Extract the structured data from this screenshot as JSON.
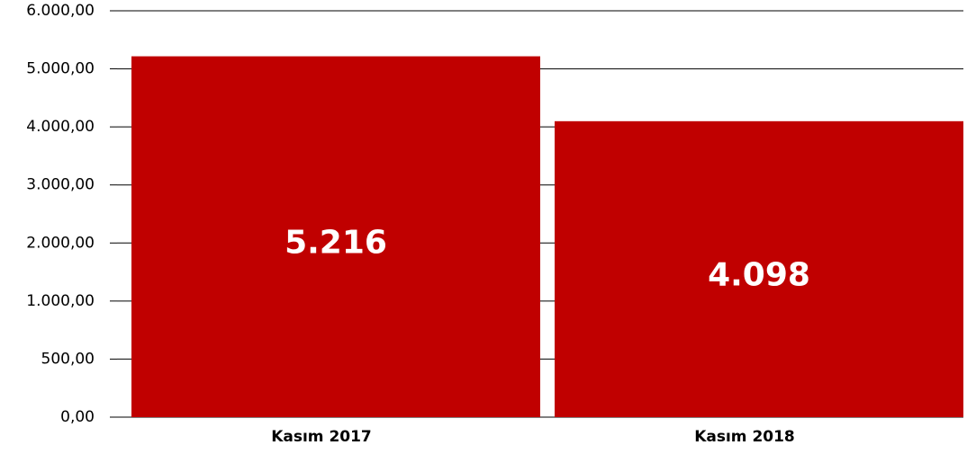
{
  "chart_data": {
    "type": "bar",
    "categories": [
      "Kasım 2017",
      "Kasım 2018"
    ],
    "values": [
      5216,
      4098
    ],
    "value_labels": [
      "5.216",
      "4.098"
    ],
    "color": "#c00000",
    "ylim": [
      0,
      6000
    ],
    "yticks": [
      {
        "value": 0,
        "label": "0,00"
      },
      {
        "value": 500,
        "label": "500,00"
      },
      {
        "value": 1000,
        "label": "1.000,00"
      },
      {
        "value": 2000,
        "label": "2.000,00"
      },
      {
        "value": 3000,
        "label": "3.000,00"
      },
      {
        "value": 4000,
        "label": "4.000,00"
      },
      {
        "value": 5000,
        "label": "5.000,00"
      },
      {
        "value": 6000,
        "label": "6.000,00"
      }
    ],
    "grid": true
  }
}
